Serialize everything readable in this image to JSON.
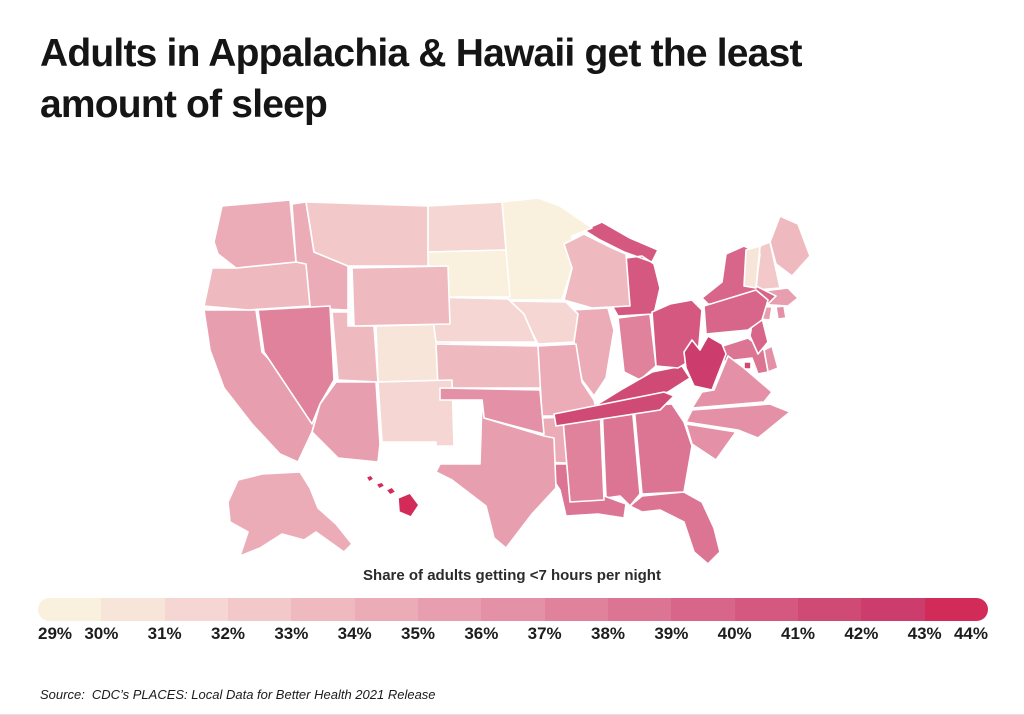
{
  "title": {
    "line1": "Adults in Appalachia & Hawaii get the least",
    "line2": "amount of sleep"
  },
  "legend": {
    "title": "Share of adults getting <7 hours per night",
    "ticks": [
      "29%",
      "30%",
      "31%",
      "32%",
      "33%",
      "34%",
      "35%",
      "36%",
      "37%",
      "38%",
      "39%",
      "40%",
      "41%",
      "42%",
      "43%",
      "44%"
    ],
    "colors": [
      "#f9f1dd",
      "#f8e5da",
      "#f5d6d2",
      "#f2c8c9",
      "#eebac0",
      "#ebacb8",
      "#e79eae",
      "#e490a6",
      "#e0829c",
      "#dc7493",
      "#d8668a",
      "#d4587f",
      "#d04a76",
      "#cc3c6c",
      "#d32b59"
    ]
  },
  "source": {
    "label": "Source:",
    "text": "CDC’s PLACES: Local Data for Better Health 2021 Release"
  },
  "chart_data": {
    "type": "choropleth",
    "title": "Adults in Appalachia & Hawaii get the least amount of sleep",
    "legend_title": "Share of adults getting <7 hours per night",
    "metric": "Share of adults getting <7 hours of sleep per night (%)",
    "scale": {
      "min": 29,
      "max": 44,
      "bin_size": 1,
      "palette_note": "cream (29%) to crimson (44%)"
    },
    "states": [
      {
        "id": "AL",
        "name": "Alabama",
        "value": 38.5
      },
      {
        "id": "AK",
        "name": "Alaska",
        "value": 34.2
      },
      {
        "id": "AZ",
        "name": "Arizona",
        "value": 35.3
      },
      {
        "id": "AR",
        "name": "Arkansas",
        "value": 34.8
      },
      {
        "id": "CA",
        "name": "California",
        "value": 35.2
      },
      {
        "id": "CO",
        "name": "Colorado",
        "value": 30.7
      },
      {
        "id": "CT",
        "name": "Connecticut",
        "value": 35.5
      },
      {
        "id": "DE",
        "name": "Delaware",
        "value": 36.6
      },
      {
        "id": "DC",
        "name": "District of Columbia",
        "value": 41.0
      },
      {
        "id": "FL",
        "name": "Florida",
        "value": 38.2
      },
      {
        "id": "GA",
        "name": "Georgia",
        "value": 38.4
      },
      {
        "id": "HI",
        "name": "Hawaii",
        "value": 43.4
      },
      {
        "id": "ID",
        "name": "Idaho",
        "value": 34.0
      },
      {
        "id": "IL",
        "name": "Illinois",
        "value": 34.6
      },
      {
        "id": "IN",
        "name": "Indiana",
        "value": 37.4
      },
      {
        "id": "IA",
        "name": "Iowa",
        "value": 31.8
      },
      {
        "id": "KS",
        "name": "Kansas",
        "value": 33.2
      },
      {
        "id": "KY",
        "name": "Kentucky",
        "value": 41.3
      },
      {
        "id": "LA",
        "name": "Louisiana",
        "value": 38.9
      },
      {
        "id": "ME",
        "name": "Maine",
        "value": 33.5
      },
      {
        "id": "MD",
        "name": "Maryland",
        "value": 38.6
      },
      {
        "id": "MA",
        "name": "Massachusetts",
        "value": 35.4
      },
      {
        "id": "MI",
        "name": "Michigan",
        "value": 40.2
      },
      {
        "id": "MN",
        "name": "Minnesota",
        "value": 29.5
      },
      {
        "id": "MS",
        "name": "Mississippi",
        "value": 37.6
      },
      {
        "id": "MO",
        "name": "Missouri",
        "value": 34.5
      },
      {
        "id": "MT",
        "name": "Montana",
        "value": 32.2
      },
      {
        "id": "NE",
        "name": "Nebraska",
        "value": 31.6
      },
      {
        "id": "NV",
        "name": "Nevada",
        "value": 37.7
      },
      {
        "id": "NH",
        "name": "New Hampshire",
        "value": 32.6
      },
      {
        "id": "NJ",
        "name": "New Jersey",
        "value": 39.0
      },
      {
        "id": "NM",
        "name": "New Mexico",
        "value": 31.9
      },
      {
        "id": "NY",
        "name": "New York",
        "value": 39.1
      },
      {
        "id": "NC",
        "name": "North Carolina",
        "value": 36.2
      },
      {
        "id": "ND",
        "name": "North Dakota",
        "value": 31.4
      },
      {
        "id": "OH",
        "name": "Ohio",
        "value": 40.1
      },
      {
        "id": "OK",
        "name": "Oklahoma",
        "value": 36.8
      },
      {
        "id": "OR",
        "name": "Oregon",
        "value": 33.4
      },
      {
        "id": "PA",
        "name": "Pennsylvania",
        "value": 39.2
      },
      {
        "id": "RI",
        "name": "Rhode Island",
        "value": 36.1
      },
      {
        "id": "SC",
        "name": "South Carolina",
        "value": 36.4
      },
      {
        "id": "SD",
        "name": "South Dakota",
        "value": 29.6
      },
      {
        "id": "TN",
        "name": "Tennessee",
        "value": 41.1
      },
      {
        "id": "TX",
        "name": "Texas",
        "value": 35.4
      },
      {
        "id": "UT",
        "name": "Utah",
        "value": 33.6
      },
      {
        "id": "VT",
        "name": "Vermont",
        "value": 30.9
      },
      {
        "id": "VA",
        "name": "Virginia",
        "value": 36.5
      },
      {
        "id": "WA",
        "name": "Washington",
        "value": 34.6
      },
      {
        "id": "WV",
        "name": "West Virginia",
        "value": 42.6
      },
      {
        "id": "WI",
        "name": "Wisconsin",
        "value": 33.1
      },
      {
        "id": "WY",
        "name": "Wyoming",
        "value": 33.3
      }
    ]
  }
}
